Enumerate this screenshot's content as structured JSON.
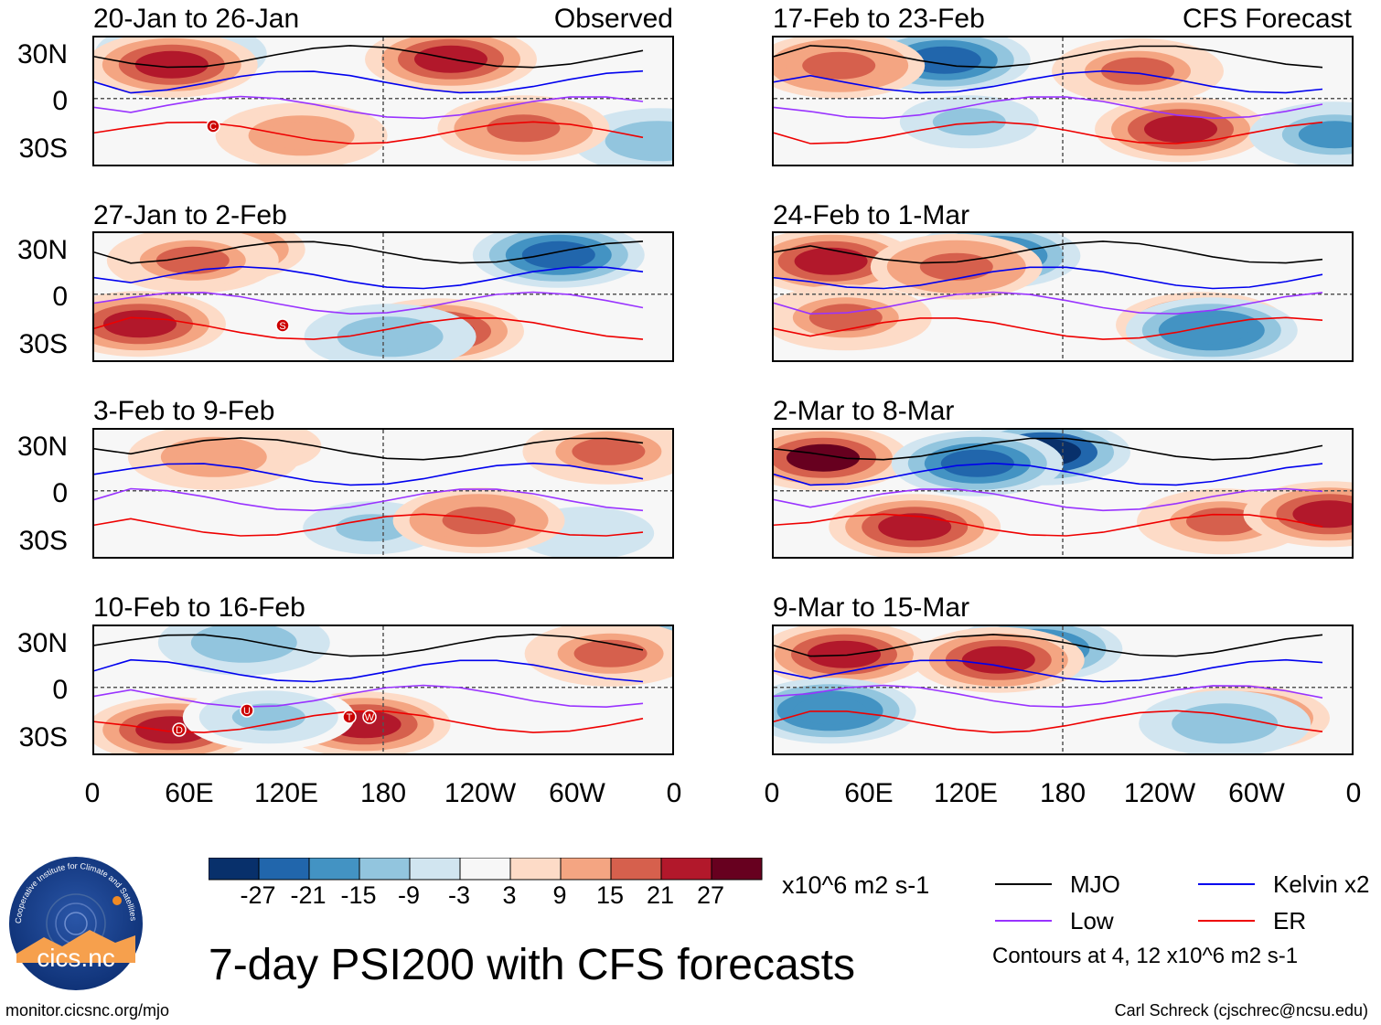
{
  "panels": {
    "left_header_tag": "Observed",
    "right_header_tag": "CFS Forecast",
    "observed": [
      {
        "title": "20-Jan to 26-Jan"
      },
      {
        "title": "27-Jan to 2-Feb"
      },
      {
        "title": "3-Feb to 9-Feb"
      },
      {
        "title": "10-Feb to 16-Feb"
      }
    ],
    "forecast": [
      {
        "title": "17-Feb to 23-Feb"
      },
      {
        "title": "24-Feb to 1-Mar"
      },
      {
        "title": "2-Mar to 8-Mar"
      },
      {
        "title": "9-Mar to 15-Mar"
      }
    ]
  },
  "axes": {
    "lat_labels": [
      "30N",
      "0",
      "30S"
    ],
    "lon_labels": [
      "0",
      "60E",
      "120E",
      "180",
      "120W",
      "60W",
      "0"
    ]
  },
  "storm_markers": [
    {
      "label": "C"
    },
    {
      "label": "S"
    },
    {
      "label": "D"
    },
    {
      "label": "U"
    },
    {
      "label": "T"
    },
    {
      "label": "W"
    }
  ],
  "colorbar": {
    "ticks": [
      "-27",
      "-21",
      "-15",
      "-9",
      "-3",
      "3",
      "9",
      "15",
      "21",
      "27"
    ],
    "colors": [
      "#08306b",
      "#2166ac",
      "#4393c3",
      "#92c5de",
      "#d1e5f0",
      "#f7f7f7",
      "#fddbc7",
      "#f4a582",
      "#d6604d",
      "#b2182b",
      "#67001f"
    ],
    "units": "x10^6 m2 s-1"
  },
  "legend": {
    "items": [
      {
        "label": "MJO",
        "color": "#000000"
      },
      {
        "label": "Kelvin x2",
        "color": "#0000ee"
      },
      {
        "label": "Low",
        "color": "#9933ff"
      },
      {
        "label": "ER",
        "color": "#ee0000"
      }
    ],
    "note": "Contours at 4, 12 x10^6 m2 s-1"
  },
  "logo_text": "cics.nc",
  "logo_ring_text": "Cooperative Institute for Climate and Satellites",
  "main_title": "7-day PSI200 with CFS forecasts",
  "footer_left": "monitor.cicsnc.org/mjo",
  "footer_right": "Carl Schreck (cjschrec@ncsu.edu)"
}
